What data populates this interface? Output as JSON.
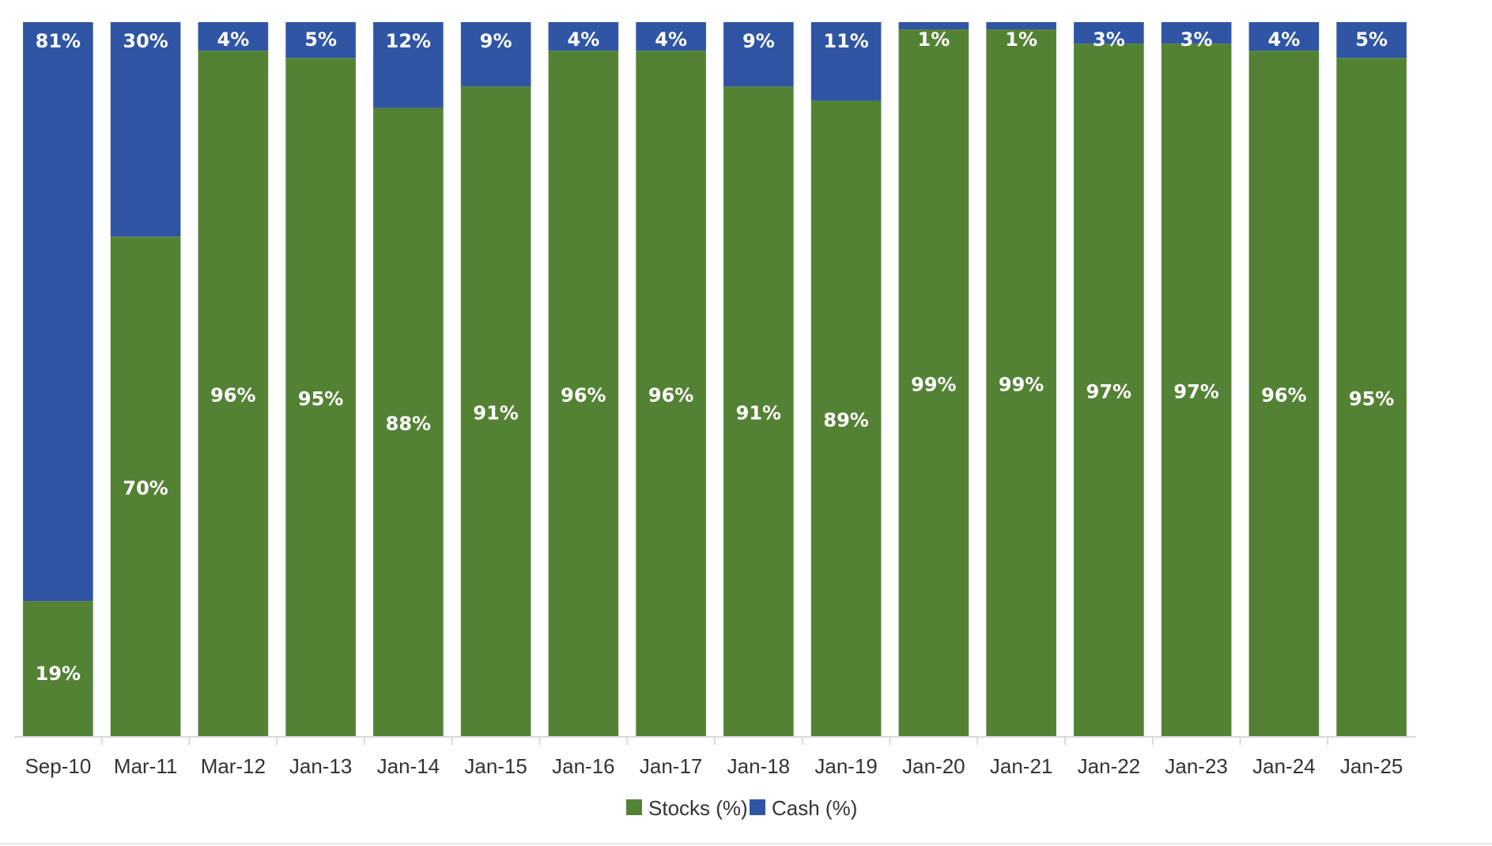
{
  "chart_data": {
    "type": "bar",
    "stacked": true,
    "categories": [
      "Sep-10",
      "Mar-11",
      "Mar-12",
      "Jan-13",
      "Jan-14",
      "Jan-15",
      "Jan-16",
      "Jan-17",
      "Jan-18",
      "Jan-19",
      "Jan-20",
      "Jan-21",
      "Jan-22",
      "Jan-23",
      "Jan-24",
      "Jan-25"
    ],
    "series": [
      {
        "name": "Stocks (%)",
        "color": "#548235",
        "values": [
          19,
          70,
          96,
          95,
          88,
          91,
          96,
          96,
          91,
          89,
          99,
          99,
          97,
          97,
          96,
          95
        ],
        "labels": [
          "19%",
          "70%",
          "96%",
          "95%",
          "88%",
          "91%",
          "96%",
          "96%",
          "91%",
          "89%",
          "99%",
          "99%",
          "97%",
          "97%",
          "96%",
          "95%"
        ]
      },
      {
        "name": "Cash (%)",
        "color": "#2F55A4",
        "values": [
          81,
          30,
          4,
          5,
          12,
          9,
          4,
          4,
          9,
          11,
          1,
          1,
          3,
          3,
          4,
          5
        ],
        "labels": [
          "81%",
          "30%",
          "4%",
          "5%",
          "12%",
          "9%",
          "4%",
          "4%",
          "9%",
          "11%",
          "1%",
          "1%",
          "3%",
          "3%",
          "4%",
          "5%"
        ]
      }
    ],
    "ylim": [
      0,
      100
    ],
    "grid": false,
    "legend_position": "bottom-center"
  }
}
